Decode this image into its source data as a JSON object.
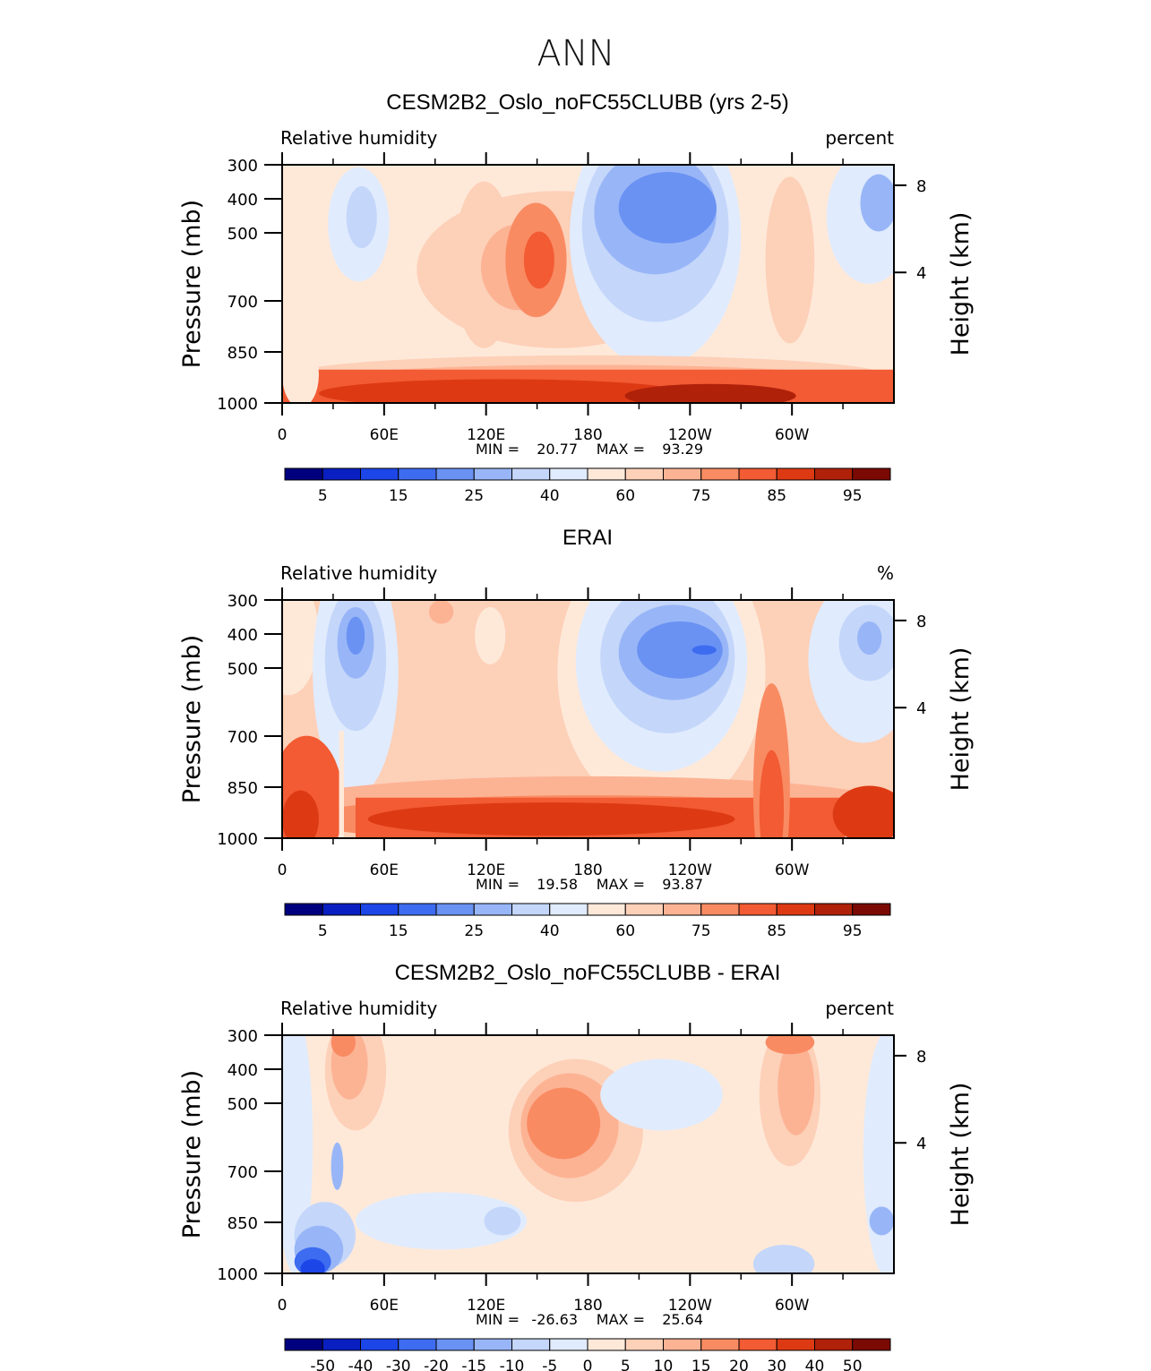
{
  "figure": {
    "title": "ANN"
  },
  "chart_data": [
    {
      "type": "heatmap",
      "title": "CESM2B2_Oslo_noFC55CLUBB (yrs 2-5)",
      "variable": "Relative humidity",
      "units": "percent",
      "ylabel": "Pressure (mb)",
      "y2label": "Height (km)",
      "xticks": [
        "0",
        "60E",
        "120E",
        "180",
        "120W",
        "60W"
      ],
      "xlim": [
        0,
        360
      ],
      "yticks": [
        "300",
        "400",
        "500",
        "700",
        "850",
        "1000"
      ],
      "ylim": [
        1000,
        300
      ],
      "y2ticks": [
        "8",
        "4"
      ],
      "min_label": "MIN =",
      "min_value": "20.77",
      "max_label": "MAX =",
      "max_value": "93.29",
      "colorbar_ticks": [
        "5",
        "15",
        "25",
        "40",
        "60",
        "75",
        "85",
        "95"
      ],
      "colorbar_colors": [
        "#00007f",
        "#0a1fc1",
        "#1d46e8",
        "#3d6cf0",
        "#6a92f3",
        "#98b6f7",
        "#c4d6fa",
        "#e0ebfd",
        "#fee9d9",
        "#fdd0b8",
        "#fcb394",
        "#f98b63",
        "#f25b33",
        "#dd3a14",
        "#b0210a",
        "#7a0a03"
      ],
      "color_levels": [
        5,
        10,
        15,
        20,
        25,
        30,
        40,
        50,
        60,
        70,
        75,
        80,
        85,
        90,
        95
      ]
    },
    {
      "type": "heatmap",
      "title": "ERAI",
      "variable": "Relative humidity",
      "units": "%",
      "ylabel": "Pressure (mb)",
      "y2label": "Height (km)",
      "xticks": [
        "0",
        "60E",
        "120E",
        "180",
        "120W",
        "60W"
      ],
      "xlim": [
        0,
        360
      ],
      "yticks": [
        "300",
        "400",
        "500",
        "700",
        "850",
        "1000"
      ],
      "ylim": [
        1000,
        300
      ],
      "y2ticks": [
        "8",
        "4"
      ],
      "min_label": "MIN =",
      "min_value": "19.58",
      "max_label": "MAX =",
      "max_value": "93.87",
      "colorbar_ticks": [
        "5",
        "15",
        "25",
        "40",
        "60",
        "75",
        "85",
        "95"
      ],
      "colorbar_colors": [
        "#00007f",
        "#0a1fc1",
        "#1d46e8",
        "#3d6cf0",
        "#6a92f3",
        "#98b6f7",
        "#c4d6fa",
        "#e0ebfd",
        "#fee9d9",
        "#fdd0b8",
        "#fcb394",
        "#f98b63",
        "#f25b33",
        "#dd3a14",
        "#b0210a",
        "#7a0a03"
      ],
      "color_levels": [
        5,
        10,
        15,
        20,
        25,
        30,
        40,
        50,
        60,
        70,
        75,
        80,
        85,
        90,
        95
      ]
    },
    {
      "type": "heatmap",
      "title": "CESM2B2_Oslo_noFC55CLUBB - ERAI",
      "variable": "Relative humidity",
      "units": "percent",
      "ylabel": "Pressure (mb)",
      "y2label": "Height (km)",
      "xticks": [
        "0",
        "60E",
        "120E",
        "180",
        "120W",
        "60W"
      ],
      "xlim": [
        0,
        360
      ],
      "yticks": [
        "300",
        "400",
        "500",
        "700",
        "850",
        "1000"
      ],
      "ylim": [
        1000,
        300
      ],
      "y2ticks": [
        "8",
        "4"
      ],
      "min_label": "MIN =",
      "min_value": "-26.63",
      "max_label": "MAX =",
      "max_value": "25.64",
      "colorbar_ticks": [
        "-50",
        "-40",
        "-30",
        "-20",
        "-15",
        "-10",
        "-5",
        "0",
        "5",
        "10",
        "15",
        "20",
        "30",
        "40",
        "50"
      ],
      "colorbar_colors": [
        "#00007f",
        "#0a1fc1",
        "#1d46e8",
        "#3d6cf0",
        "#6a92f3",
        "#98b6f7",
        "#c4d6fa",
        "#e0ebfd",
        "#fee9d9",
        "#fdd0b8",
        "#fcb394",
        "#f98b63",
        "#f25b33",
        "#dd3a14",
        "#b0210a",
        "#7a0a03"
      ],
      "color_levels": [
        -50,
        -40,
        -30,
        -20,
        -15,
        -10,
        -5,
        0,
        5,
        10,
        15,
        20,
        30,
        40,
        50
      ]
    }
  ]
}
